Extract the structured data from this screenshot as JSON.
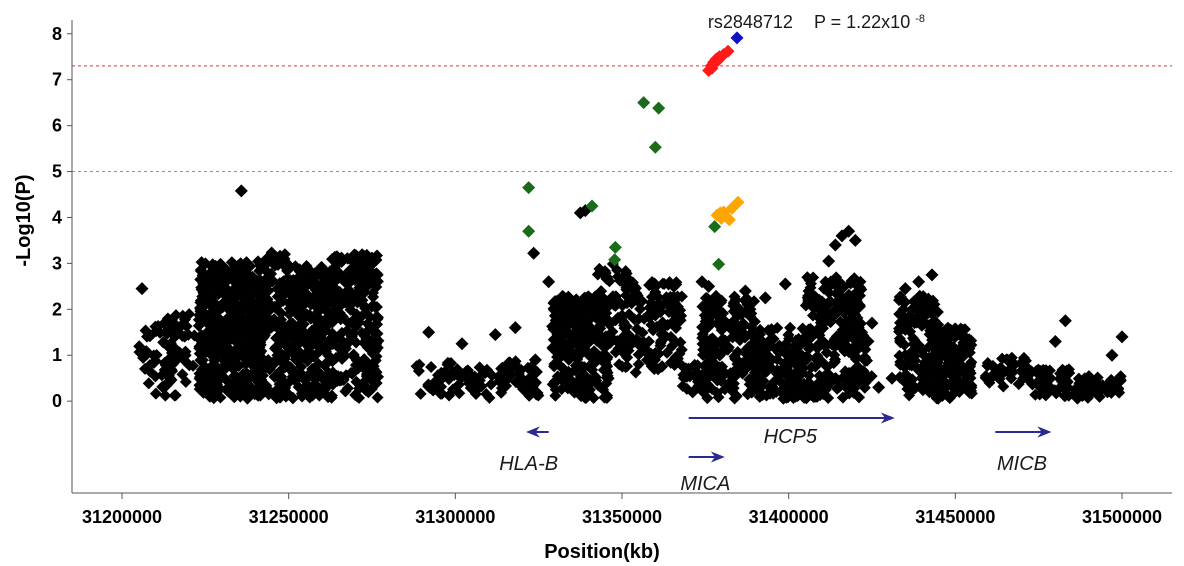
{
  "chart_data": {
    "type": "scatter",
    "title": "",
    "xlabel": "Position(kb)",
    "ylabel": "-Log10(P)",
    "xlim": [
      31185000,
      31515000
    ],
    "ylim": [
      -2,
      8.3
    ],
    "x_ticks": [
      "31200000",
      "31250000",
      "31300000",
      "31350000",
      "31400000",
      "31450000",
      "31500000"
    ],
    "y_ticks": [
      "0",
      "1",
      "2",
      "3",
      "4",
      "5",
      "6",
      "7",
      "8"
    ],
    "thresholds": [
      {
        "value": 7.3,
        "color": "#e8312b"
      },
      {
        "value": 5.0,
        "color": "#8a8ae6"
      }
    ],
    "annotation": {
      "snp": "rs2848712",
      "p_prefix": "P = 1.22x10",
      "p_exp": "-8"
    },
    "colors": {
      "black": "#000000",
      "green": "#1a6b1a",
      "orange": "#ffa500",
      "red": "#ff1a1a",
      "blue": "#1010c8",
      "gene": "#2a2a90"
    },
    "series": [
      {
        "color": "blue",
        "points": [
          [
            31384500,
            7.91
          ]
        ]
      },
      {
        "color": "red",
        "points": [
          [
            31376000,
            7.2
          ],
          [
            31376800,
            7.3
          ],
          [
            31377500,
            7.38
          ],
          [
            31378300,
            7.45
          ],
          [
            31379200,
            7.5
          ],
          [
            31380500,
            7.55
          ],
          [
            31381800,
            7.62
          ],
          [
            31377000,
            7.25
          ],
          [
            31378800,
            7.42
          ]
        ]
      },
      {
        "color": "green",
        "points": [
          [
            31356500,
            6.5
          ],
          [
            31361000,
            6.38
          ],
          [
            31360000,
            5.53
          ],
          [
            31322000,
            4.65
          ],
          [
            31341000,
            4.25
          ],
          [
            31322000,
            3.7
          ],
          [
            31348000,
            3.35
          ],
          [
            31347800,
            3.08
          ],
          [
            31377800,
            3.8
          ],
          [
            31379000,
            2.98
          ]
        ]
      },
      {
        "color": "orange",
        "points": [
          [
            31378500,
            4.05
          ],
          [
            31379500,
            4.1
          ],
          [
            31380500,
            4.12
          ],
          [
            31381500,
            4.0
          ],
          [
            31382200,
            3.95
          ],
          [
            31383000,
            4.2
          ],
          [
            31384800,
            4.33
          ],
          [
            31379800,
            3.98
          ]
        ]
      },
      {
        "color": "black",
        "points": [
          [
            31206000,
            2.45
          ],
          [
            31235800,
            4.58
          ],
          [
            31337500,
            4.1
          ],
          [
            31339000,
            4.15
          ],
          [
            31323500,
            3.22
          ],
          [
            31328000,
            2.6
          ],
          [
            31312000,
            1.45
          ],
          [
            31318000,
            1.6
          ],
          [
            31302000,
            1.25
          ],
          [
            31292000,
            1.5
          ],
          [
            31324000,
            0.9
          ],
          [
            31330000,
            1.2
          ],
          [
            31360000,
            2.5
          ],
          [
            31364000,
            2.55
          ],
          [
            31374000,
            2.6
          ],
          [
            31376000,
            2.5
          ],
          [
            31387000,
            2.4
          ],
          [
            31399000,
            2.55
          ],
          [
            31393000,
            2.25
          ],
          [
            31416000,
            3.6
          ],
          [
            31418000,
            3.7
          ],
          [
            31420000,
            3.5
          ],
          [
            31412000,
            3.05
          ],
          [
            31414000,
            3.4
          ],
          [
            31443000,
            2.75
          ],
          [
            31439000,
            2.6
          ],
          [
            31435000,
            2.45
          ],
          [
            31483000,
            1.75
          ],
          [
            31480000,
            1.3
          ],
          [
            31500000,
            1.4
          ],
          [
            31497000,
            1.0
          ],
          [
            31392000,
            1.3
          ],
          [
            31402000,
            1.2
          ],
          [
            31408000,
            1.5
          ],
          [
            31425000,
            1.7
          ],
          [
            31431000,
            0.5
          ],
          [
            31427000,
            0.3
          ],
          [
            31486000,
            0.25
          ],
          [
            31490000,
            0.35
          ]
        ]
      }
    ],
    "dense_blocks": [
      {
        "x": [
          31205000,
          31217000
        ],
        "y": [
          0.1,
          1.7
        ],
        "n": 50
      },
      {
        "x": [
          31213000,
          31222000
        ],
        "y": [
          0.1,
          1.9
        ],
        "n": 40
      },
      {
        "x": [
          31223000,
          31243000
        ],
        "y": [
          0.05,
          3.05
        ],
        "n": 500
      },
      {
        "x": [
          31243000,
          31250000
        ],
        "y": [
          0.05,
          3.25
        ],
        "n": 110
      },
      {
        "x": [
          31250000,
          31262000
        ],
        "y": [
          0.05,
          2.95
        ],
        "n": 280
      },
      {
        "x": [
          31262000,
          31277000
        ],
        "y": [
          0.05,
          3.2
        ],
        "n": 260
      },
      {
        "x": [
          31288000,
          31300000
        ],
        "y": [
          0.05,
          0.9
        ],
        "n": 30
      },
      {
        "x": [
          31300000,
          31316000
        ],
        "y": [
          0.05,
          0.75
        ],
        "n": 45
      },
      {
        "x": [
          31315000,
          31325000
        ],
        "y": [
          0.05,
          0.9
        ],
        "n": 35
      },
      {
        "x": [
          31329000,
          31346000
        ],
        "y": [
          0.05,
          2.3
        ],
        "n": 260
      },
      {
        "x": [
          31342000,
          31352000
        ],
        "y": [
          0.5,
          3.0
        ],
        "n": 60
      },
      {
        "x": [
          31349000,
          31368000
        ],
        "y": [
          0.6,
          2.6
        ],
        "n": 140
      },
      {
        "x": [
          31368000,
          31377000
        ],
        "y": [
          0.05,
          0.8
        ],
        "n": 30
      },
      {
        "x": [
          31374000,
          31390000
        ],
        "y": [
          0.05,
          2.3
        ],
        "n": 200
      },
      {
        "x": [
          31388000,
          31405000
        ],
        "y": [
          0.05,
          1.6
        ],
        "n": 130
      },
      {
        "x": [
          31398000,
          31410000
        ],
        "y": [
          0.05,
          0.4
        ],
        "n": 80
      },
      {
        "x": [
          31405000,
          31422000
        ],
        "y": [
          0.05,
          2.7
        ],
        "n": 230
      },
      {
        "x": [
          31420000,
          31425000
        ],
        "y": [
          0.05,
          1.5
        ],
        "n": 20
      },
      {
        "x": [
          31433000,
          31445000
        ],
        "y": [
          0.1,
          2.3
        ],
        "n": 140
      },
      {
        "x": [
          31444000,
          31455000
        ],
        "y": [
          0.05,
          1.6
        ],
        "n": 150
      },
      {
        "x": [
          31459000,
          31473000
        ],
        "y": [
          0.3,
          0.95
        ],
        "n": 45
      },
      {
        "x": [
          31473000,
          31485000
        ],
        "y": [
          0.05,
          0.7
        ],
        "n": 50
      },
      {
        "x": [
          31485000,
          31500000
        ],
        "y": [
          0.05,
          0.55
        ],
        "n": 55
      }
    ],
    "genes": [
      {
        "name": "HLA-B",
        "start": 31328000,
        "end": 31322000,
        "row": 1
      },
      {
        "name": "MICA",
        "start": 31370000,
        "end": 31380000,
        "row": 2
      },
      {
        "name": "HCP5",
        "start": 31370000,
        "end": 31431000,
        "row": 0
      },
      {
        "name": "MICB",
        "start": 31462000,
        "end": 31478000,
        "row": 1
      }
    ]
  }
}
